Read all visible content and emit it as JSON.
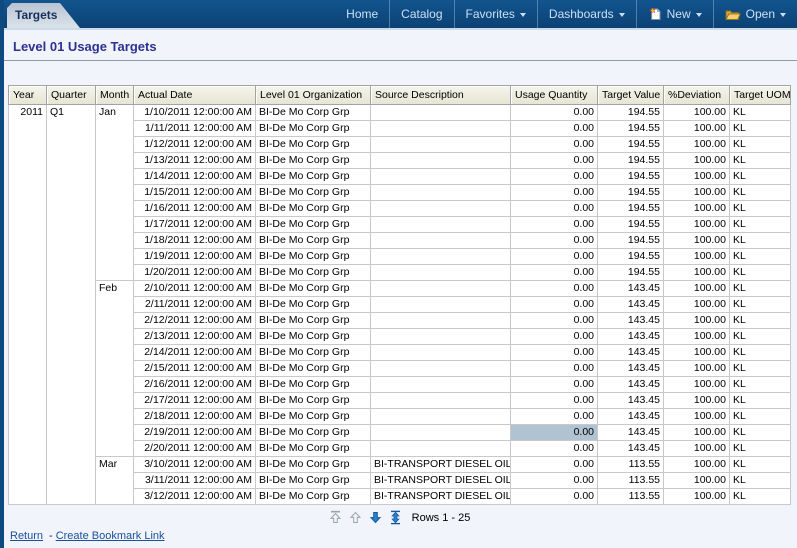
{
  "tab": {
    "label": "Targets"
  },
  "nav": {
    "items": [
      {
        "label": "Home"
      },
      {
        "label": "Catalog"
      },
      {
        "label": "Favorites"
      },
      {
        "label": "Dashboards"
      },
      {
        "label": "New"
      },
      {
        "label": "Open"
      }
    ]
  },
  "page": {
    "title": "Level 01 Usage Targets"
  },
  "colors": {
    "top_bar": "#0e4a80",
    "header_bg": "#efeee0",
    "highlight_cell": "#b0c3d2",
    "title": "#2e3191",
    "link": "#19519f"
  },
  "icons": [
    "new-page-icon",
    "open-folder-icon",
    "chevron-down-icon",
    "first-page-icon",
    "previous-page-icon",
    "next-page-icon",
    "all-rows-icon"
  ],
  "table": {
    "columns": [
      "Year",
      "Quarter",
      "Month",
      "Actual Date",
      "Level 01 Organization",
      "Source Description",
      "Usage Quantity",
      "Target Value",
      "%Deviation",
      "Target UOM"
    ],
    "year": "2011",
    "quarter": "Q1",
    "months": [
      {
        "name": "Jan",
        "rows": [
          {
            "date": "1/10/2011 12:00:00 AM",
            "org": "BI-De Mo Corp Grp",
            "source": "",
            "usage": "0.00",
            "target": "194.55",
            "deviation": "100.00",
            "uom": "KL"
          },
          {
            "date": "1/11/2011 12:00:00 AM",
            "org": "BI-De Mo Corp Grp",
            "source": "",
            "usage": "0.00",
            "target": "194.55",
            "deviation": "100.00",
            "uom": "KL"
          },
          {
            "date": "1/12/2011 12:00:00 AM",
            "org": "BI-De Mo Corp Grp",
            "source": "",
            "usage": "0.00",
            "target": "194.55",
            "deviation": "100.00",
            "uom": "KL"
          },
          {
            "date": "1/13/2011 12:00:00 AM",
            "org": "BI-De Mo Corp Grp",
            "source": "",
            "usage": "0.00",
            "target": "194.55",
            "deviation": "100.00",
            "uom": "KL"
          },
          {
            "date": "1/14/2011 12:00:00 AM",
            "org": "BI-De Mo Corp Grp",
            "source": "",
            "usage": "0.00",
            "target": "194.55",
            "deviation": "100.00",
            "uom": "KL"
          },
          {
            "date": "1/15/2011 12:00:00 AM",
            "org": "BI-De Mo Corp Grp",
            "source": "",
            "usage": "0.00",
            "target": "194.55",
            "deviation": "100.00",
            "uom": "KL"
          },
          {
            "date": "1/16/2011 12:00:00 AM",
            "org": "BI-De Mo Corp Grp",
            "source": "",
            "usage": "0.00",
            "target": "194.55",
            "deviation": "100.00",
            "uom": "KL"
          },
          {
            "date": "1/17/2011 12:00:00 AM",
            "org": "BI-De Mo Corp Grp",
            "source": "",
            "usage": "0.00",
            "target": "194.55",
            "deviation": "100.00",
            "uom": "KL"
          },
          {
            "date": "1/18/2011 12:00:00 AM",
            "org": "BI-De Mo Corp Grp",
            "source": "",
            "usage": "0.00",
            "target": "194.55",
            "deviation": "100.00",
            "uom": "KL"
          },
          {
            "date": "1/19/2011 12:00:00 AM",
            "org": "BI-De Mo Corp Grp",
            "source": "",
            "usage": "0.00",
            "target": "194.55",
            "deviation": "100.00",
            "uom": "KL"
          },
          {
            "date": "1/20/2011 12:00:00 AM",
            "org": "BI-De Mo Corp Grp",
            "source": "",
            "usage": "0.00",
            "target": "194.55",
            "deviation": "100.00",
            "uom": "KL"
          }
        ]
      },
      {
        "name": "Feb",
        "rows": [
          {
            "date": "2/10/2011 12:00:00 AM",
            "org": "BI-De Mo Corp Grp",
            "source": "",
            "usage": "0.00",
            "target": "143.45",
            "deviation": "100.00",
            "uom": "KL"
          },
          {
            "date": "2/11/2011 12:00:00 AM",
            "org": "BI-De Mo Corp Grp",
            "source": "",
            "usage": "0.00",
            "target": "143.45",
            "deviation": "100.00",
            "uom": "KL"
          },
          {
            "date": "2/12/2011 12:00:00 AM",
            "org": "BI-De Mo Corp Grp",
            "source": "",
            "usage": "0.00",
            "target": "143.45",
            "deviation": "100.00",
            "uom": "KL"
          },
          {
            "date": "2/13/2011 12:00:00 AM",
            "org": "BI-De Mo Corp Grp",
            "source": "",
            "usage": "0.00",
            "target": "143.45",
            "deviation": "100.00",
            "uom": "KL"
          },
          {
            "date": "2/14/2011 12:00:00 AM",
            "org": "BI-De Mo Corp Grp",
            "source": "",
            "usage": "0.00",
            "target": "143.45",
            "deviation": "100.00",
            "uom": "KL"
          },
          {
            "date": "2/15/2011 12:00:00 AM",
            "org": "BI-De Mo Corp Grp",
            "source": "",
            "usage": "0.00",
            "target": "143.45",
            "deviation": "100.00",
            "uom": "KL"
          },
          {
            "date": "2/16/2011 12:00:00 AM",
            "org": "BI-De Mo Corp Grp",
            "source": "",
            "usage": "0.00",
            "target": "143.45",
            "deviation": "100.00",
            "uom": "KL"
          },
          {
            "date": "2/17/2011 12:00:00 AM",
            "org": "BI-De Mo Corp Grp",
            "source": "",
            "usage": "0.00",
            "target": "143.45",
            "deviation": "100.00",
            "uom": "KL"
          },
          {
            "date": "2/18/2011 12:00:00 AM",
            "org": "BI-De Mo Corp Grp",
            "source": "",
            "usage": "0.00",
            "target": "143.45",
            "deviation": "100.00",
            "uom": "KL"
          },
          {
            "date": "2/19/2011 12:00:00 AM",
            "org": "BI-De Mo Corp Grp",
            "source": "",
            "usage": "0.00",
            "target": "143.45",
            "deviation": "100.00",
            "uom": "KL",
            "highlight_usage": true
          },
          {
            "date": "2/20/2011 12:00:00 AM",
            "org": "BI-De Mo Corp Grp",
            "source": "",
            "usage": "0.00",
            "target": "143.45",
            "deviation": "100.00",
            "uom": "KL"
          }
        ]
      },
      {
        "name": "Mar",
        "rows": [
          {
            "date": "3/10/2011 12:00:00 AM",
            "org": "BI-De Mo Corp Grp",
            "source": "BI-TRANSPORT DIESEL OIL",
            "usage": "0.00",
            "target": "113.55",
            "deviation": "100.00",
            "uom": "KL"
          },
          {
            "date": "3/11/2011 12:00:00 AM",
            "org": "BI-De Mo Corp Grp",
            "source": "BI-TRANSPORT DIESEL OIL",
            "usage": "0.00",
            "target": "113.55",
            "deviation": "100.00",
            "uom": "KL"
          },
          {
            "date": "3/12/2011 12:00:00 AM",
            "org": "BI-De Mo Corp Grp",
            "source": "BI-TRANSPORT DIESEL OIL",
            "usage": "0.00",
            "target": "113.55",
            "deviation": "100.00",
            "uom": "KL"
          }
        ]
      }
    ]
  },
  "pagination": {
    "label": "Rows 1 - 25",
    "icons": [
      {
        "name": "first-page-icon",
        "enabled": false
      },
      {
        "name": "previous-page-icon",
        "enabled": false
      },
      {
        "name": "next-page-icon",
        "enabled": true
      },
      {
        "name": "all-rows-icon",
        "enabled": true
      }
    ]
  },
  "footer": {
    "return_label": "Return",
    "separator": "-",
    "bookmark_label": "Create Bookmark Link"
  }
}
